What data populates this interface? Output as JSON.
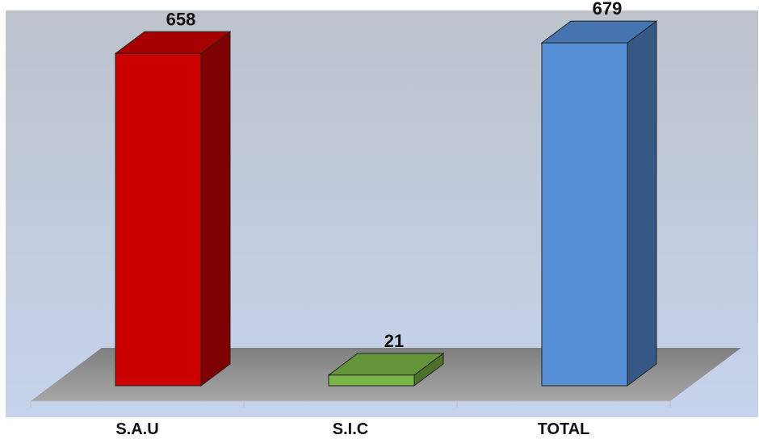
{
  "chart_data": {
    "type": "bar",
    "title": "",
    "xlabel": "",
    "ylabel": "",
    "categories": [
      "S.A.U",
      "S.I.C",
      "TOTAL"
    ],
    "values": [
      658,
      21,
      679
    ],
    "data_labels": [
      "658",
      "21",
      "679"
    ],
    "ylim": [
      0,
      700
    ],
    "grid": false,
    "legend": "none",
    "three_d": true,
    "colors": {
      "bars": [
        "#cc0000",
        "#7ab648",
        "#558ed5"
      ],
      "background_top": "#bec3cc",
      "background_bottom": "#c5d3ec",
      "floor": "#8c8c8c"
    }
  }
}
